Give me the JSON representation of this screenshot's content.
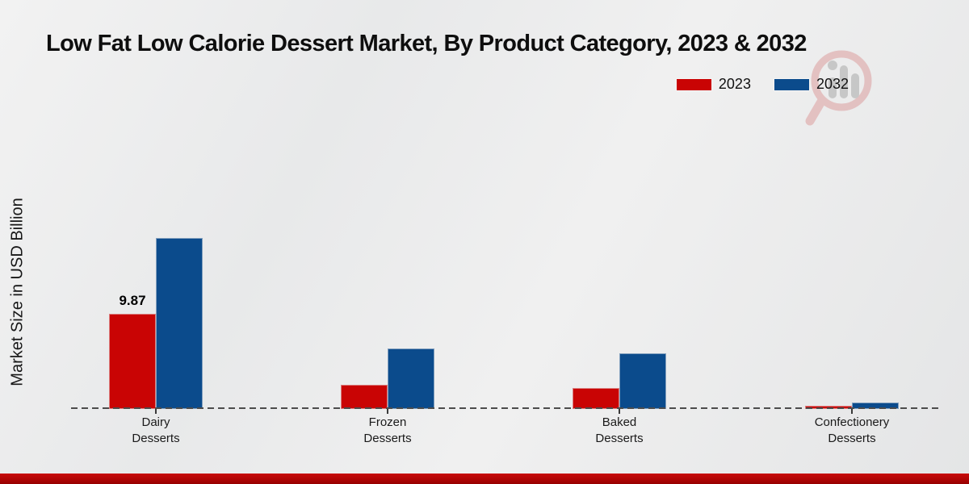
{
  "page": {
    "title": "Low Fat Low Calorie Dessert Market, By Product Category, 2023 & 2032",
    "ylabel": "Market Size in USD Billion",
    "accent_color": "#b10505",
    "background_color": "#eaeaec",
    "watermark_icon": "magnifier-bar-chart-logo"
  },
  "legend": [
    {
      "label": "2023",
      "color": "#c90404"
    },
    {
      "label": "2032",
      "color": "#0b4b8c"
    }
  ],
  "chart_data": {
    "type": "bar",
    "title": "Low Fat Low Calorie Dessert Market, By Product Category, 2023 & 2032",
    "xlabel": "",
    "ylabel": "Market Size in USD Billion",
    "categories": [
      "Dairy Desserts",
      "Frozen Desserts",
      "Baked Desserts",
      "Confectionery Desserts"
    ],
    "series": [
      {
        "name": "2023",
        "color": "#c90404",
        "values": [
          9.87,
          2.5,
          2.2,
          0.35
        ]
      },
      {
        "name": "2032",
        "color": "#0b4b8c",
        "values": [
          17.7,
          6.3,
          5.8,
          0.7
        ]
      }
    ],
    "bar_labels": [
      {
        "category": "Dairy Desserts",
        "series": "2023",
        "text": "9.87"
      }
    ],
    "ylim": [
      0,
      20
    ],
    "grid": false,
    "baseline_style": "dashed",
    "legend_position": "top-right",
    "units": "USD Billion"
  }
}
